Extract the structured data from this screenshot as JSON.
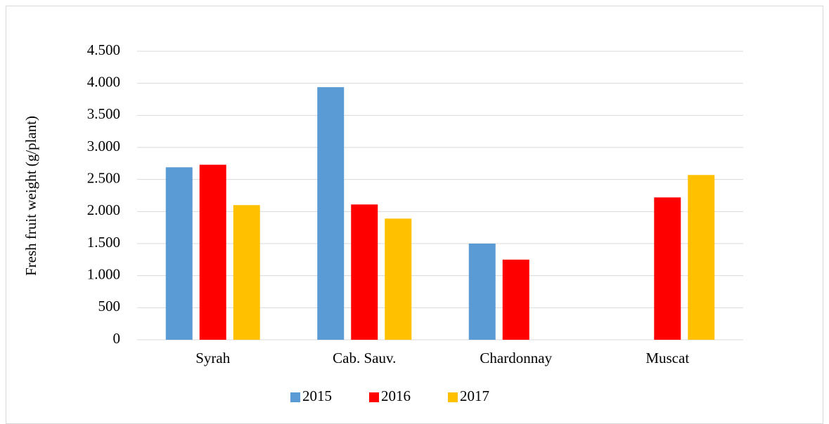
{
  "chart_data": {
    "type": "bar",
    "ylabel": "Fresh fruit weight  (g/plant)",
    "categories": [
      "Syrah",
      "Cab. Sauv.",
      "Chardonnay",
      "Muscat"
    ],
    "series": [
      {
        "name": "2015",
        "color": "#5b9bd5",
        "values": [
          2690,
          3940,
          1500,
          null
        ]
      },
      {
        "name": "2016",
        "color": "#ff0000",
        "values": [
          2730,
          2110,
          1250,
          2220
        ]
      },
      {
        "name": "2017",
        "color": "#ffc000",
        "values": [
          2100,
          1890,
          null,
          2570
        ]
      }
    ],
    "ylim": [
      0,
      4500
    ],
    "yticks": [
      0,
      500,
      {
        "value": 1000,
        "label": "1.000"
      },
      {
        "value": 1500,
        "label": "1.500"
      },
      {
        "value": 2000,
        "label": "2.000"
      },
      {
        "value": 2500,
        "label": "2.500"
      },
      {
        "value": 3000,
        "label": "3.000"
      },
      {
        "value": 3500,
        "label": "3.500"
      },
      {
        "value": 4000,
        "label": "4.000"
      },
      {
        "value": 4500,
        "label": "4.500"
      }
    ],
    "grid": true,
    "legend": "bottom"
  }
}
